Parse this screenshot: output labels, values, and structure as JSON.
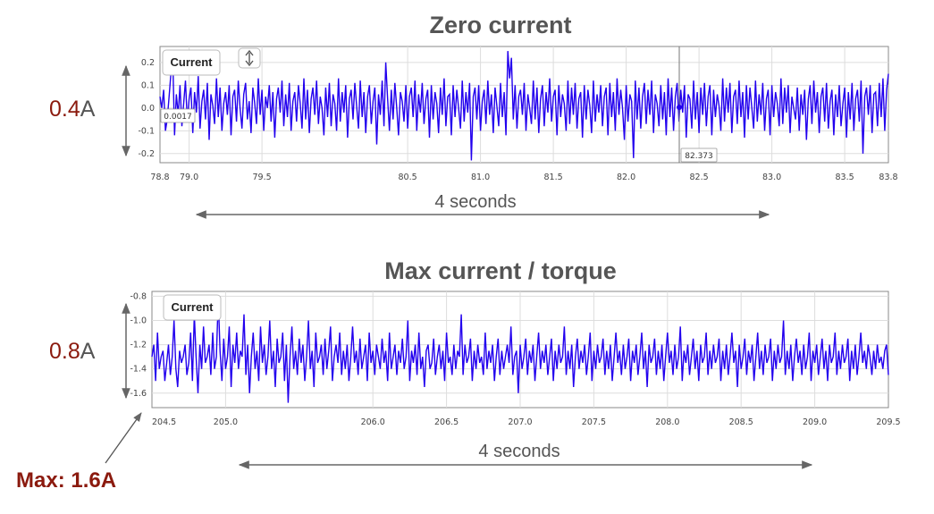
{
  "colors": {
    "series": "#2200ee",
    "accent": "#8b1a0e",
    "grid": "#dddddd",
    "arrow": "#666666"
  },
  "chart_data": [
    {
      "type": "line",
      "title": "Zero current",
      "legend_label": "Current",
      "cursor_value": "0.0017",
      "cursor_x_label": "82.373",
      "magnitude_label": {
        "prefix": "0.4",
        "suffix": "A"
      },
      "duration_label": "4 seconds",
      "xlim": [
        78.8,
        83.8
      ],
      "ylim": [
        -0.24,
        0.27
      ],
      "x_ticks": [
        "78.8",
        "79.0",
        "79.5",
        "80.5",
        "81.0",
        "81.5",
        "82.0",
        "82.5",
        "83.0",
        "83.5",
        "83.8"
      ],
      "y_ticks": [
        "0.2",
        "0.1",
        "0.0",
        "-0.1",
        "-0.2"
      ],
      "series": [
        {
          "name": "Current",
          "x_start": 78.8,
          "x_step": 0.0125,
          "values": [
            0.05,
            0.0,
            0.08,
            -0.1,
            -0.05,
            0.05,
            0.15,
            0.22,
            -0.12,
            0.06,
            -0.03,
            0.1,
            -0.08,
            0.02,
            0.12,
            -0.06,
            0.04,
            0.09,
            -0.11,
            0.07,
            -0.02,
            0.14,
            -0.09,
            0.03,
            0.08,
            -0.05,
            0.11,
            -0.14,
            0.06,
            0.01,
            -0.07,
            0.13,
            -0.04,
            0.09,
            -0.1,
            0.02,
            0.07,
            -0.03,
            0.1,
            -0.12,
            0.05,
            0.08,
            -0.06,
            0.12,
            0.0,
            -0.09,
            0.06,
            0.11,
            -0.05,
            0.03,
            -0.11,
            0.09,
            0.02,
            -0.07,
            0.13,
            -0.03,
            0.08,
            -0.1,
            0.05,
            0.0,
            0.1,
            -0.06,
            0.07,
            -0.13,
            0.04,
            0.09,
            -0.02,
            0.12,
            -0.08,
            0.06,
            -0.04,
            0.11,
            -0.1,
            0.03,
            0.07,
            -0.06,
            0.1,
            0.02,
            -0.09,
            0.13,
            -0.05,
            0.08,
            -0.11,
            0.04,
            0.09,
            -0.03,
            0.12,
            -0.07,
            0.05,
            0.0,
            -0.12,
            0.09,
            -0.04,
            0.11,
            -0.08,
            0.06,
            0.02,
            -0.1,
            0.13,
            -0.06,
            0.07,
            -0.02,
            0.1,
            -0.13,
            0.04,
            0.08,
            -0.05,
            0.11,
            0.01,
            -0.09,
            0.12,
            -0.04,
            0.07,
            -0.11,
            0.05,
            0.1,
            -0.07,
            0.03,
            0.09,
            -0.16,
            0.06,
            -0.03,
            0.12,
            -0.08,
            0.2,
            0.04,
            -0.1,
            0.08,
            -0.05,
            0.11,
            0.0,
            -0.12,
            0.07,
            0.03,
            -0.06,
            0.1,
            -0.09,
            0.05,
            0.09,
            -0.04,
            0.12,
            -0.1,
            0.06,
            -0.02,
            0.11,
            -0.07,
            0.04,
            0.08,
            -0.13,
            0.1,
            -0.05,
            0.07,
            0.02,
            -0.11,
            0.09,
            -0.03,
            0.13,
            -0.08,
            0.05,
            0.06,
            -0.12,
            0.1,
            -0.04,
            0.08,
            0.0,
            -0.09,
            0.12,
            -0.06,
            0.07,
            -0.02,
            0.11,
            -0.23,
            0.05,
            0.09,
            -0.05,
            0.1,
            -0.1,
            0.03,
            0.08,
            -0.07,
            0.12,
            -0.03,
            0.06,
            -0.11,
            0.09,
            0.01,
            -0.08,
            0.11,
            -0.04,
            0.07,
            -0.12,
            0.25,
            0.13,
            0.22,
            -0.05,
            0.1,
            -0.09,
            0.05,
            0.08,
            -0.03,
            0.11,
            -0.1,
            0.06,
            0.0,
            -0.07,
            0.12,
            -0.05,
            0.09,
            -0.11,
            0.04,
            0.1,
            -0.08,
            0.07,
            -0.02,
            0.13,
            -0.06,
            0.05,
            0.08,
            -0.12,
            0.1,
            -0.04,
            0.06,
            0.02,
            -0.1,
            0.12,
            -0.07,
            0.09,
            -0.03,
            0.11,
            -0.09,
            0.04,
            0.07,
            -0.13,
            0.1,
            -0.05,
            0.08,
            0.01,
            -0.11,
            0.12,
            -0.06,
            0.06,
            -0.02,
            0.1,
            -0.08,
            0.05,
            0.09,
            -0.12,
            0.11,
            -0.04,
            0.07,
            -0.1,
            0.13,
            -0.03,
            0.08,
            0.0,
            -0.14,
            0.1,
            -0.06,
            0.06,
            0.03,
            -0.22,
            0.12,
            -0.05,
            0.09,
            -0.09,
            0.05,
            0.11,
            -0.07,
            0.08,
            -0.03,
            0.12,
            -0.11,
            0.06,
            0.02,
            -0.08,
            0.1,
            -0.05,
            0.07,
            -0.12,
            0.13,
            -0.04,
            0.09,
            -0.1,
            0.05,
            0.11,
            -0.06,
            0.08,
            -0.02,
            0.1,
            -0.13,
            0.06,
            0.04,
            -0.09,
            0.12,
            -0.05,
            0.07,
            -0.11,
            0.09,
            -0.03,
            0.11,
            -0.08,
            0.05,
            0.1,
            -0.12,
            0.08,
            -0.04,
            0.06,
            0.01,
            -0.1,
            0.13,
            -0.06,
            0.09,
            -0.02,
            0.11,
            -0.11,
            0.05,
            0.08,
            -0.07,
            0.12,
            -0.04,
            0.07,
            -0.13,
            0.1,
            -0.05,
            0.09,
            0.0,
            -0.09,
            0.12,
            -0.06,
            0.06,
            -0.03,
            0.11,
            -0.1,
            0.04,
            0.08,
            -0.12,
            0.1,
            -0.04,
            0.07,
            0.02,
            -0.08,
            0.13,
            -0.07,
            0.09,
            -0.02,
            0.1,
            -0.11,
            0.05,
            0.0,
            -0.05,
            0.09,
            -0.1,
            0.06,
            -0.03,
            0.08,
            -0.14,
            0.04,
            0.1,
            -0.07,
            0.12,
            -0.02,
            0.07,
            -0.11,
            0.05,
            0.09,
            -0.06,
            0.11,
            -0.09,
            0.03,
            0.08,
            -0.12,
            0.06,
            -0.04,
            0.1,
            -0.08,
            0.02,
            0.09,
            -0.13,
            0.07,
            -0.05,
            0.11,
            -0.1,
            0.04,
            0.08,
            -0.06,
            0.12,
            -0.2,
            0.05,
            0.09,
            -0.03,
            0.1,
            -0.11,
            0.06,
            0.07,
            -0.08,
            0.11,
            -0.04,
            0.13,
            -0.1,
            0.08,
            0.15,
            -0.05,
            0.12,
            -0.09,
            0.18,
            0.06,
            -0.12,
            0.1,
            0.05,
            0.16,
            -0.03,
            0.11,
            -0.07,
            0.2,
            0.07,
            0.26,
            0.04,
            -0.08,
            0.14,
            -0.05,
            0.12,
            0.02,
            -0.1,
            0.09,
            0.05,
            0.11,
            -0.04,
            0.07,
            0.03,
            0.08
          ]
        }
      ]
    },
    {
      "type": "line",
      "title": "Max current / torque",
      "legend_label": "Current",
      "magnitude_label": {
        "prefix": "0.8",
        "suffix": "A"
      },
      "duration_label": "4 seconds",
      "max_label": "Max: 1.6A",
      "start_tick_label": "204.5",
      "xlim": [
        204.5,
        209.5
      ],
      "ylim": [
        -1.72,
        -0.76
      ],
      "x_ticks": [
        "205.0",
        "206.0",
        "206.5",
        "207.0",
        "207.5",
        "208.0",
        "208.5",
        "209.0",
        "209.5"
      ],
      "y_ticks": [
        "-0.8",
        "-1.0",
        "-1.2",
        "-1.4",
        "-1.6"
      ],
      "series": [
        {
          "name": "Current",
          "x_start": 204.5,
          "x_step": 0.0125,
          "values": [
            -1.3,
            -1.2,
            -1.5,
            -1.1,
            -1.4,
            -1.3,
            -1.25,
            -1.5,
            -1.35,
            -1.2,
            -1.45,
            -1.3,
            -1.0,
            -1.4,
            -1.55,
            -1.25,
            -1.35,
            -1.3,
            -1.2,
            -1.45,
            -1.35,
            -1.1,
            -1.5,
            -0.95,
            -1.3,
            -1.6,
            -1.2,
            -1.4,
            -1.05,
            -1.35,
            -1.3,
            -1.2,
            -1.45,
            -1.1,
            -1.4,
            -1.3,
            -0.82,
            -1.25,
            -1.5,
            -1.15,
            -1.4,
            -1.3,
            -1.05,
            -1.55,
            -1.2,
            -1.35,
            -1.1,
            -1.4,
            -1.25,
            -1.3,
            -0.95,
            -1.45,
            -1.2,
            -1.6,
            -1.3,
            -1.1,
            -1.4,
            -1.25,
            -1.5,
            -1.05,
            -1.35,
            -1.2,
            -1.45,
            -1.3,
            -1.0,
            -1.4,
            -1.25,
            -1.55,
            -1.15,
            -1.35,
            -1.3,
            -1.1,
            -1.5,
            -1.2,
            -1.68,
            -1.3,
            -1.05,
            -1.4,
            -1.25,
            -1.45,
            -1.15,
            -1.35,
            -1.2,
            -1.5,
            -1.3,
            -1.0,
            -1.4,
            -1.25,
            -1.55,
            -1.1,
            -1.35,
            -1.3,
            -1.2,
            -1.45,
            -1.15,
            -1.4,
            -1.25,
            -1.05,
            -1.5,
            -1.3,
            -1.2,
            -1.35,
            -1.1,
            -1.45,
            -1.25,
            -1.4,
            -1.2,
            -1.5,
            -1.3,
            -1.05,
            -1.35,
            -1.25,
            -1.45,
            -1.15,
            -1.4,
            -1.3,
            -1.2,
            -1.5,
            -1.1,
            -1.35,
            -1.25,
            -1.45,
            -1.2,
            -1.3,
            -1.4,
            -1.15,
            -1.35,
            -1.25,
            -1.5,
            -1.1,
            -1.4,
            -1.3,
            -1.2,
            -1.45,
            -1.25,
            -1.35,
            -1.15,
            -1.4,
            -1.3,
            -1.0,
            -1.5,
            -1.25,
            -1.35,
            -1.2,
            -1.45,
            -1.1,
            -1.4,
            -1.3,
            -1.55,
            -1.25,
            -1.2,
            -1.4,
            -1.35,
            -1.15,
            -1.45,
            -1.3,
            -1.2,
            -1.4,
            -1.25,
            -1.5,
            -1.1,
            -1.35,
            -1.3,
            -1.45,
            -1.2,
            -1.4,
            -1.25,
            -1.3,
            -0.95,
            -1.45,
            -1.2,
            -1.35,
            -1.3,
            -1.15,
            -1.5,
            -1.25,
            -1.4,
            -1.2,
            -1.35,
            -1.3,
            -1.45,
            -1.1,
            -1.4,
            -1.25,
            -1.35,
            -1.2,
            -1.5,
            -1.3,
            -1.15,
            -1.45,
            -1.25,
            -1.4,
            -1.3,
            -1.2,
            -1.35,
            -1.05,
            -1.45,
            -1.3,
            -1.25,
            -1.6,
            -1.2,
            -1.4,
            -1.3,
            -1.15,
            -1.45,
            -1.25,
            -1.35,
            -1.2,
            -1.5,
            -1.3,
            -1.1,
            -1.4,
            -1.25,
            -1.35,
            -1.2,
            -1.45,
            -1.3,
            -1.15,
            -1.5,
            -1.25,
            -1.4,
            -1.2,
            -1.35,
            -1.3,
            -1.05,
            -1.45,
            -1.25,
            -1.4,
            -1.2,
            -1.55,
            -1.3,
            -1.15,
            -1.4,
            -1.25,
            -1.35,
            -1.2,
            -1.45,
            -1.3,
            -1.1,
            -1.5,
            -1.25,
            -1.4,
            -1.2,
            -1.35,
            -1.3,
            -1.15,
            -1.45,
            -1.25,
            -1.4,
            -1.2,
            -1.5,
            -1.3,
            -1.1,
            -1.35,
            -1.25,
            -1.45,
            -1.2,
            -1.4,
            -1.3,
            -1.15,
            -1.5,
            -1.25,
            -1.35,
            -1.2,
            -1.45,
            -1.3,
            -1.1,
            -1.4,
            -1.25,
            -1.55,
            -1.2,
            -1.35,
            -1.3,
            -1.15,
            -1.45,
            -1.25,
            -1.4,
            -1.2,
            -1.5,
            -1.3,
            -1.1,
            -1.35,
            -1.25,
            -1.45,
            -1.2,
            -1.4,
            -1.3,
            -1.05,
            -1.5,
            -1.25,
            -1.35,
            -1.2,
            -1.45,
            -1.3,
            -1.15,
            -1.4,
            -1.25,
            -1.5,
            -1.2,
            -1.35,
            -1.3,
            -1.1,
            -1.45,
            -1.25,
            -1.4,
            -1.2,
            -1.35,
            -1.3,
            -1.15,
            -1.5,
            -1.25,
            -1.4,
            -1.2,
            -1.45,
            -1.3,
            -1.1,
            -1.35,
            -1.25,
            -1.55,
            -1.2,
            -1.4,
            -1.3,
            -1.15,
            -1.45,
            -1.25,
            -1.35,
            -1.2,
            -1.5,
            -1.3,
            -1.1,
            -1.4,
            -1.25,
            -1.45,
            -1.2,
            -1.35,
            -1.3,
            -1.15,
            -1.5,
            -1.25,
            -1.4,
            -1.2,
            -1.35,
            -1.3,
            -1.0,
            -1.45,
            -1.25,
            -1.4,
            -1.2,
            -1.5,
            -1.3,
            -1.15,
            -1.35,
            -1.25,
            -1.45,
            -1.2,
            -1.4,
            -1.3,
            -1.1,
            -1.5,
            -1.25,
            -1.35,
            -1.2,
            -1.45,
            -1.3,
            -1.15,
            -1.4,
            -1.25,
            -1.5,
            -1.2,
            -1.35,
            -1.3,
            -1.1,
            -1.45,
            -1.25,
            -1.4,
            -1.2,
            -1.35,
            -1.3,
            -1.15,
            -1.5,
            -1.25,
            -1.4,
            -1.2,
            -1.45,
            -1.3,
            -1.1,
            -1.35,
            -1.25,
            -1.4,
            -1.2,
            -1.3,
            -1.45,
            -1.25,
            -1.4,
            -1.2,
            -1.35,
            -1.3,
            -1.4,
            -1.25,
            -1.2,
            -1.45,
            -1.3,
            -1.35,
            -1.1,
            -1.25,
            -1.4,
            -0.95,
            -1.3,
            -1.2,
            -1.45,
            -1.1,
            -1.35,
            -0.95,
            -1.05,
            -1.25
          ]
        }
      ]
    }
  ]
}
